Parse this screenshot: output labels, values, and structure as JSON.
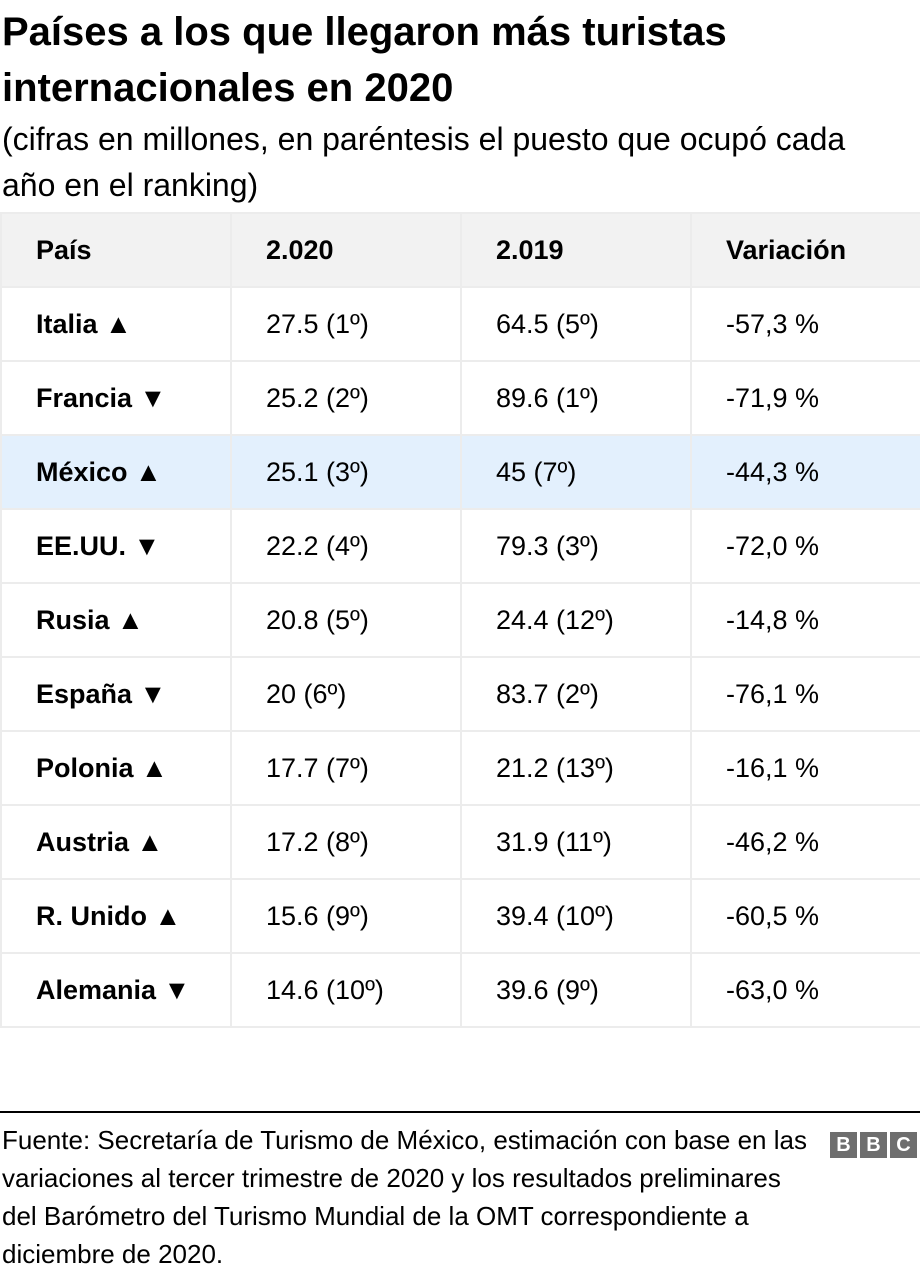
{
  "title": "Países a los que llegaron más turistas internacionales en 2020",
  "subtitle": "(cifras en millones, en paréntesis el puesto que ocupó cada año en el ranking)",
  "footer": "Fuente: Secretaría de Turismo de México, estimación con base en las variaciones al tercer trimestre de 2020 y los resultados preliminares del Barómetro del Turismo Mundial de la OMT correspondiente a diciembre de 2020.",
  "logo": [
    "B",
    "B",
    "C"
  ],
  "colors": {
    "header_bg": "#f2f2f2",
    "highlight_bg": "#e3f0fd",
    "border": "#ececec",
    "logo": "#6e6e6e"
  },
  "chart_data": {
    "type": "table",
    "columns": [
      "País",
      "2.020",
      "2.019",
      "Variación"
    ],
    "highlight_row": 2,
    "rows": [
      [
        "Italia ▲",
        "27.5 (1º)",
        "64.5 (5º)",
        "-57,3 %"
      ],
      [
        "Francia ▼",
        "25.2 (2º)",
        "89.6 (1º)",
        "-71,9 %"
      ],
      [
        "México ▲",
        "25.1 (3º)",
        "45 (7º)",
        "-44,3 %"
      ],
      [
        "EE.UU. ▼",
        "22.2 (4º)",
        "79.3 (3º)",
        "-72,0 %"
      ],
      [
        "Rusia ▲",
        "20.8 (5º)",
        "24.4 (12º)",
        "-14,8 %"
      ],
      [
        "España ▼",
        "20 (6º)",
        "83.7 (2º)",
        "-76,1 %"
      ],
      [
        "Polonia ▲",
        "17.7 (7º)",
        "21.2 (13º)",
        "-16,1 %"
      ],
      [
        "Austria ▲",
        "17.2 (8º)",
        "31.9 (11º)",
        "-46,2 %"
      ],
      [
        "R. Unido ▲",
        "15.6 (9º)",
        "39.4 (10º)",
        "-60,5 %"
      ],
      [
        "Alemania ▼",
        "14.6 (10º)",
        "39.6 (9º)",
        "-63,0 %"
      ]
    ]
  }
}
